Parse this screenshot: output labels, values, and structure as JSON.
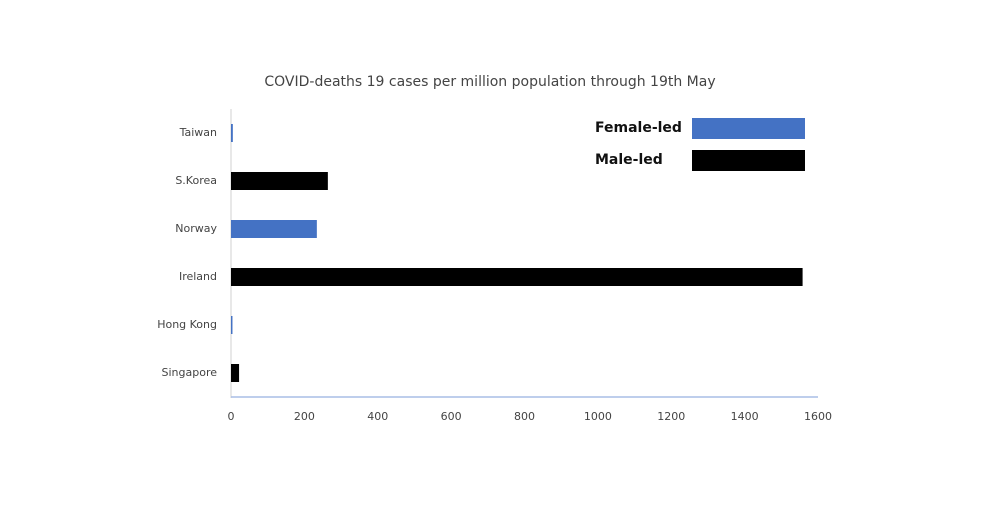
{
  "chart_data": {
    "type": "bar",
    "orientation": "horizontal",
    "title": "COVID-deaths 19 cases per million population through 19th May",
    "categories": [
      "Taiwan",
      "S.Korea",
      "Norway",
      "Ireland",
      "Hong Kong",
      "Singapore"
    ],
    "series": [
      {
        "name": "Female-led",
        "color": "#4472c4",
        "values": [
          5,
          null,
          234,
          null,
          4,
          null
        ]
      },
      {
        "name": "Male-led",
        "color": "#000000",
        "values": [
          null,
          264,
          null,
          1558,
          null,
          22
        ]
      }
    ],
    "xlim": [
      0,
      1600
    ],
    "xticks": [
      0,
      200,
      400,
      600,
      800,
      1000,
      1200,
      1400,
      1600
    ],
    "legend": "upper right"
  }
}
